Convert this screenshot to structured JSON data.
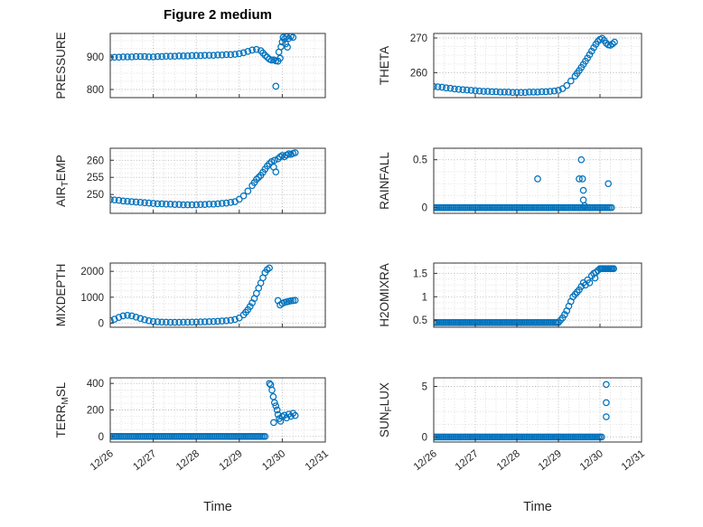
{
  "figure": {
    "title": "Figure 2 medium",
    "xlabel": "Time",
    "marker_color": "#0072BD",
    "x_axis": {
      "lim": [
        0,
        5
      ],
      "ticks": [
        0,
        1,
        2,
        3,
        4,
        5
      ],
      "tick_labels": [
        "12/26",
        "12/27",
        "12/28",
        "12/29",
        "12/30",
        "12/31"
      ],
      "minor_step": 0.25
    }
  },
  "chart_data": [
    {
      "type": "scatter",
      "name": "pressure",
      "ylabel_parts": [
        {
          "t": "PRESSURE",
          "sub": false
        }
      ],
      "ylim": [
        775,
        972
      ],
      "yticks": [
        800,
        900
      ],
      "y_minor": 25,
      "points": [
        [
          0,
          898
        ],
        [
          0.1,
          899
        ],
        [
          0.2,
          899
        ],
        [
          0.3,
          900
        ],
        [
          0.4,
          900
        ],
        [
          0.5,
          900
        ],
        [
          0.6,
          901
        ],
        [
          0.7,
          901
        ],
        [
          0.8,
          901
        ],
        [
          0.9,
          900
        ],
        [
          1,
          900
        ],
        [
          1.1,
          901
        ],
        [
          1.2,
          901
        ],
        [
          1.3,
          902
        ],
        [
          1.4,
          902
        ],
        [
          1.5,
          902
        ],
        [
          1.6,
          903
        ],
        [
          1.7,
          903
        ],
        [
          1.8,
          903
        ],
        [
          1.9,
          904
        ],
        [
          2,
          904
        ],
        [
          2.1,
          904
        ],
        [
          2.2,
          905
        ],
        [
          2.3,
          905
        ],
        [
          2.4,
          905
        ],
        [
          2.5,
          906
        ],
        [
          2.6,
          906
        ],
        [
          2.7,
          907
        ],
        [
          2.8,
          907
        ],
        [
          2.9,
          908
        ],
        [
          3,
          910
        ],
        [
          3.1,
          913
        ],
        [
          3.2,
          917
        ],
        [
          3.3,
          921
        ],
        [
          3.4,
          923
        ],
        [
          3.5,
          919
        ],
        [
          3.55,
          912
        ],
        [
          3.6,
          905
        ],
        [
          3.65,
          899
        ],
        [
          3.7,
          893
        ],
        [
          3.75,
          890
        ],
        [
          3.8,
          891
        ],
        [
          3.85,
          888
        ],
        [
          3.9,
          887
        ],
        [
          3.85,
          810
        ],
        [
          3.92,
          915
        ],
        [
          3.95,
          896
        ],
        [
          3.97,
          931
        ],
        [
          4,
          946
        ],
        [
          4.02,
          960
        ],
        [
          4.05,
          955
        ],
        [
          4.08,
          940
        ],
        [
          4.1,
          962
        ],
        [
          4.12,
          930
        ],
        [
          4.15,
          957
        ],
        [
          4.2,
          963
        ],
        [
          4.25,
          960
        ]
      ]
    },
    {
      "type": "scatter",
      "name": "theta",
      "ylabel_parts": [
        {
          "t": "THETA",
          "sub": false
        }
      ],
      "ylim": [
        252.8,
        271.3
      ],
      "yticks": [
        260,
        270
      ],
      "y_minor": 2.5,
      "points": [
        [
          0,
          256
        ],
        [
          0.1,
          255.9
        ],
        [
          0.2,
          255.8
        ],
        [
          0.3,
          255.6
        ],
        [
          0.4,
          255.5
        ],
        [
          0.5,
          255.3
        ],
        [
          0.6,
          255.2
        ],
        [
          0.7,
          255.1
        ],
        [
          0.8,
          255
        ],
        [
          0.9,
          254.9
        ],
        [
          1,
          254.8
        ],
        [
          1.1,
          254.7
        ],
        [
          1.2,
          254.6
        ],
        [
          1.3,
          254.6
        ],
        [
          1.4,
          254.5
        ],
        [
          1.5,
          254.5
        ],
        [
          1.6,
          254.4
        ],
        [
          1.7,
          254.4
        ],
        [
          1.8,
          254.4
        ],
        [
          1.9,
          254.3
        ],
        [
          2,
          254.3
        ],
        [
          2.1,
          254.3
        ],
        [
          2.2,
          254.3
        ],
        [
          2.3,
          254.4
        ],
        [
          2.4,
          254.4
        ],
        [
          2.5,
          254.4
        ],
        [
          2.6,
          254.5
        ],
        [
          2.7,
          254.5
        ],
        [
          2.8,
          254.6
        ],
        [
          2.9,
          254.7
        ],
        [
          3,
          254.9
        ],
        [
          3.1,
          255.4
        ],
        [
          3.2,
          256.3
        ],
        [
          3.3,
          257.6
        ],
        [
          3.4,
          259
        ],
        [
          3.45,
          259.8
        ],
        [
          3.5,
          260.6
        ],
        [
          3.55,
          261.5
        ],
        [
          3.6,
          262.4
        ],
        [
          3.65,
          263.3
        ],
        [
          3.7,
          264.2
        ],
        [
          3.75,
          265.2
        ],
        [
          3.8,
          266.2
        ],
        [
          3.85,
          267.2
        ],
        [
          3.9,
          268.2
        ],
        [
          3.95,
          269
        ],
        [
          4,
          269.6
        ],
        [
          4.05,
          269.9
        ],
        [
          4.1,
          269.3
        ],
        [
          4.15,
          268.5
        ],
        [
          4.2,
          268
        ],
        [
          4.25,
          267.9
        ],
        [
          4.3,
          268.3
        ],
        [
          4.35,
          268.8
        ]
      ]
    },
    {
      "type": "scatter",
      "name": "air-temp",
      "ylabel_parts": [
        {
          "t": "AIR",
          "sub": false
        },
        {
          "t": "T",
          "sub": true
        },
        {
          "t": "EMP",
          "sub": false
        }
      ],
      "ylim": [
        244.5,
        263.5
      ],
      "yticks": [
        250,
        255,
        260
      ],
      "y_minor": 1.25,
      "points": [
        [
          0,
          248.5
        ],
        [
          0.1,
          248.4
        ],
        [
          0.2,
          248.3
        ],
        [
          0.3,
          248.1
        ],
        [
          0.4,
          248
        ],
        [
          0.5,
          247.9
        ],
        [
          0.6,
          247.8
        ],
        [
          0.7,
          247.7
        ],
        [
          0.8,
          247.6
        ],
        [
          0.9,
          247.5
        ],
        [
          1,
          247.4
        ],
        [
          1.1,
          247.3
        ],
        [
          1.2,
          247.3
        ],
        [
          1.3,
          247.2
        ],
        [
          1.4,
          247.2
        ],
        [
          1.5,
          247.1
        ],
        [
          1.6,
          247.1
        ],
        [
          1.7,
          247
        ],
        [
          1.8,
          247
        ],
        [
          1.9,
          247
        ],
        [
          2,
          247
        ],
        [
          2.1,
          247.1
        ],
        [
          2.2,
          247.1
        ],
        [
          2.3,
          247.2
        ],
        [
          2.4,
          247.2
        ],
        [
          2.5,
          247.3
        ],
        [
          2.6,
          247.4
        ],
        [
          2.7,
          247.5
        ],
        [
          2.8,
          247.7
        ],
        [
          2.9,
          247.9
        ],
        [
          3,
          248.6
        ],
        [
          3.1,
          249.6
        ],
        [
          3.2,
          251
        ],
        [
          3.3,
          252.6
        ],
        [
          3.35,
          253.5
        ],
        [
          3.4,
          254.4
        ],
        [
          3.45,
          255
        ],
        [
          3.5,
          255.6
        ],
        [
          3.55,
          256.5
        ],
        [
          3.6,
          257.4
        ],
        [
          3.65,
          258.3
        ],
        [
          3.7,
          259
        ],
        [
          3.75,
          259.6
        ],
        [
          3.8,
          258
        ],
        [
          3.82,
          260
        ],
        [
          3.85,
          256.6
        ],
        [
          3.9,
          260.4
        ],
        [
          3.95,
          261
        ],
        [
          4,
          261.4
        ],
        [
          4.05,
          261
        ],
        [
          4.1,
          261.5
        ],
        [
          4.15,
          261.9
        ],
        [
          4.2,
          261.7
        ],
        [
          4.25,
          262
        ],
        [
          4.3,
          262.2
        ]
      ]
    },
    {
      "type": "scatter",
      "name": "rainfall",
      "ylabel_parts": [
        {
          "t": "RAINFALL",
          "sub": false
        }
      ],
      "ylim": [
        -0.06,
        0.62
      ],
      "yticks": [
        0,
        0.5
      ],
      "y_minor": 0.125,
      "runs": [
        [
          0,
          4.3,
          0.04,
          0
        ]
      ],
      "points": [
        [
          2.5,
          0.3
        ],
        [
          3.5,
          0.3
        ],
        [
          3.55,
          0.5
        ],
        [
          3.58,
          0.3
        ],
        [
          3.6,
          0.18
        ],
        [
          3.6,
          0.08
        ],
        [
          3.63,
          0.02
        ],
        [
          4.2,
          0.25
        ]
      ]
    },
    {
      "type": "scatter",
      "name": "mixdepth",
      "ylabel_parts": [
        {
          "t": "MIXDEPTH",
          "sub": false
        }
      ],
      "ylim": [
        -160,
        2320
      ],
      "yticks": [
        0,
        1000,
        2000
      ],
      "y_minor": 250,
      "points": [
        [
          0,
          100
        ],
        [
          0.1,
          150
        ],
        [
          0.2,
          220
        ],
        [
          0.3,
          280
        ],
        [
          0.4,
          300
        ],
        [
          0.5,
          280
        ],
        [
          0.6,
          230
        ],
        [
          0.7,
          180
        ],
        [
          0.8,
          130
        ],
        [
          0.9,
          90
        ],
        [
          1,
          60
        ],
        [
          1.1,
          50
        ],
        [
          1.2,
          40
        ],
        [
          1.3,
          35
        ],
        [
          1.4,
          30
        ],
        [
          1.5,
          30
        ],
        [
          1.6,
          30
        ],
        [
          1.7,
          35
        ],
        [
          1.8,
          35
        ],
        [
          1.9,
          40
        ],
        [
          2,
          40
        ],
        [
          2.1,
          45
        ],
        [
          2.2,
          50
        ],
        [
          2.3,
          55
        ],
        [
          2.4,
          60
        ],
        [
          2.5,
          70
        ],
        [
          2.6,
          80
        ],
        [
          2.7,
          90
        ],
        [
          2.8,
          110
        ],
        [
          2.9,
          140
        ],
        [
          3,
          200
        ],
        [
          3.1,
          320
        ],
        [
          3.15,
          420
        ],
        [
          3.2,
          520
        ],
        [
          3.25,
          640
        ],
        [
          3.3,
          780
        ],
        [
          3.35,
          950
        ],
        [
          3.4,
          1150
        ],
        [
          3.45,
          1350
        ],
        [
          3.5,
          1550
        ],
        [
          3.55,
          1750
        ],
        [
          3.6,
          1950
        ],
        [
          3.65,
          2070
        ],
        [
          3.7,
          2130
        ],
        [
          3.9,
          870
        ],
        [
          3.95,
          700
        ],
        [
          4,
          760
        ],
        [
          4.05,
          800
        ],
        [
          4.1,
          820
        ],
        [
          4.15,
          840
        ],
        [
          4.2,
          860
        ],
        [
          4.25,
          870
        ],
        [
          4.3,
          880
        ]
      ]
    },
    {
      "type": "scatter",
      "name": "h2omixra",
      "ylabel_parts": [
        {
          "t": "H2OMIXRA",
          "sub": false
        }
      ],
      "ylim": [
        0.35,
        1.72
      ],
      "yticks": [
        0.5,
        1,
        1.5
      ],
      "y_minor": 0.125,
      "runs": [
        [
          0,
          3,
          0.04,
          0.45
        ],
        [
          4,
          4.35,
          0.03,
          1.6
        ]
      ],
      "points": [
        [
          3.05,
          0.5
        ],
        [
          3.1,
          0.55
        ],
        [
          3.15,
          0.62
        ],
        [
          3.2,
          0.7
        ],
        [
          3.25,
          0.8
        ],
        [
          3.3,
          0.9
        ],
        [
          3.35,
          1
        ],
        [
          3.4,
          1.05
        ],
        [
          3.45,
          1.1
        ],
        [
          3.5,
          1.15
        ],
        [
          3.55,
          1.22
        ],
        [
          3.6,
          1.3
        ],
        [
          3.65,
          1.25
        ],
        [
          3.7,
          1.36
        ],
        [
          3.75,
          1.3
        ],
        [
          3.8,
          1.45
        ],
        [
          3.85,
          1.5
        ],
        [
          3.88,
          1.4
        ],
        [
          3.9,
          1.52
        ],
        [
          3.95,
          1.56
        ]
      ]
    },
    {
      "type": "scatter",
      "name": "terr-msl",
      "ylabel_parts": [
        {
          "t": "TERR",
          "sub": false
        },
        {
          "t": "M",
          "sub": true
        },
        {
          "t": "SL",
          "sub": false
        }
      ],
      "ylim": [
        -42,
        442
      ],
      "yticks": [
        0,
        200,
        400
      ],
      "y_minor": 50,
      "runs": [
        [
          0,
          3.6,
          0.04,
          0
        ]
      ],
      "points": [
        [
          3.7,
          400
        ],
        [
          3.73,
          390
        ],
        [
          3.76,
          350
        ],
        [
          3.79,
          300
        ],
        [
          3.8,
          105
        ],
        [
          3.82,
          255
        ],
        [
          3.85,
          230
        ],
        [
          3.88,
          200
        ],
        [
          3.9,
          165
        ],
        [
          3.93,
          135
        ],
        [
          3.96,
          115
        ],
        [
          4,
          150
        ],
        [
          4.05,
          160
        ],
        [
          4.1,
          140
        ],
        [
          4.15,
          168
        ],
        [
          4.2,
          152
        ],
        [
          4.25,
          175
        ],
        [
          4.3,
          158
        ]
      ]
    },
    {
      "type": "scatter",
      "name": "sun-flux",
      "ylabel_parts": [
        {
          "t": "SUN",
          "sub": false
        },
        {
          "t": "F",
          "sub": true
        },
        {
          "t": "LUX",
          "sub": false
        }
      ],
      "ylim": [
        -0.5,
        5.85
      ],
      "yticks": [
        0,
        5
      ],
      "y_minor": 1.25,
      "runs": [
        [
          0,
          4.05,
          0.04,
          0
        ]
      ],
      "points": [
        [
          4.15,
          5.2
        ],
        [
          4.15,
          3.4
        ],
        [
          4.15,
          2
        ]
      ]
    }
  ]
}
